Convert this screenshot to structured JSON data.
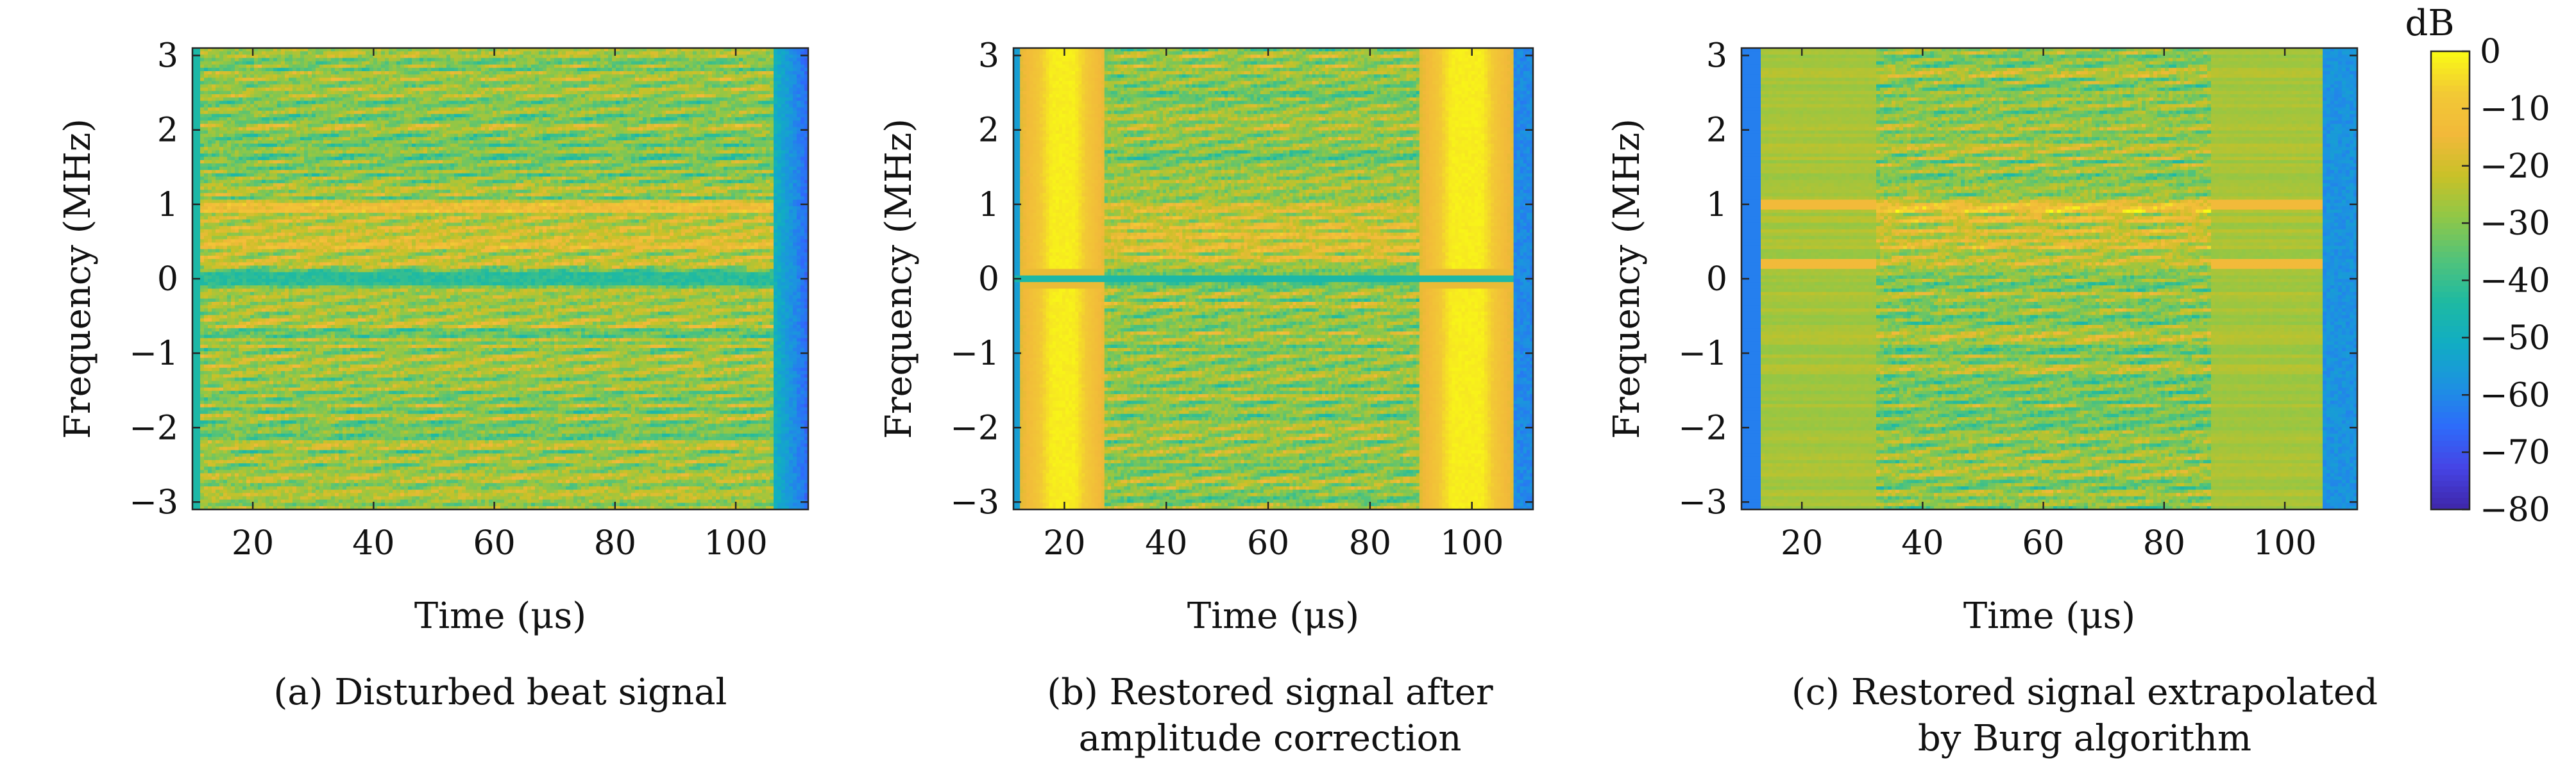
{
  "chart_data": [
    {
      "type": "heatmap",
      "panel": "a",
      "caption": "(a) Disturbed beat signal",
      "xlabel": "Time (μs)",
      "ylabel": "Frequency (MHz)",
      "xlim": [
        10,
        112
      ],
      "ylim": [
        -3.1,
        3.1
      ],
      "xticks": [
        20,
        40,
        60,
        80,
        100
      ],
      "yticks": [
        -3,
        -2,
        -1,
        0,
        1,
        2,
        3
      ],
      "content": "disturbed",
      "notes": "noise-like spectrogram; strong horizontal line near 0 MHz; band 0.2–1 MHz brighter; low values (< -60 dB) at t > 106 μs"
    },
    {
      "type": "heatmap",
      "panel": "b",
      "caption": "(b) Restored signal after amplitude correction",
      "xlabel": "Time (μs)",
      "ylabel": "Frequency (MHz)",
      "xlim": [
        10,
        112
      ],
      "ylim": [
        -3.1,
        3.1
      ],
      "xticks": [
        20,
        40,
        60,
        80,
        100
      ],
      "yticks": [
        -3,
        -2,
        -1,
        0,
        1,
        2,
        3
      ],
      "content": "amplitude_corrected",
      "bright_bands_us": [
        [
          11,
          28
        ],
        [
          90,
          108
        ]
      ],
      "notes": "near 0 dB (yellow) vertical bands in the windowed regions; dark line near 0 MHz"
    },
    {
      "type": "heatmap",
      "panel": "c",
      "caption": "(c) Restored signal extrapolated by Burg algorithm",
      "xlabel": "Time (μs)",
      "ylabel": "Frequency (MHz)",
      "xlim": [
        10,
        112
      ],
      "ylim": [
        -3.1,
        3.1
      ],
      "xticks": [
        20,
        40,
        60,
        80,
        100
      ],
      "yticks": [
        -3,
        -2,
        -1,
        0,
        1,
        2,
        3
      ],
      "content": "burg_extrapolated",
      "smooth_bands_us": [
        [
          12,
          32
        ],
        [
          88,
          106
        ]
      ],
      "notes": "extrapolated regions show horizontally smooth stripes around -20 to -25 dB"
    }
  ],
  "colorbar": {
    "label": "dB",
    "range": [
      -80,
      0
    ],
    "ticks": [
      "0",
      "−10",
      "−20",
      "−30",
      "−40",
      "−50",
      "−60",
      "−70",
      "−80"
    ],
    "colormap": [
      "#3e26a8",
      "#4644e5",
      "#2d6cfa",
      "#1c93e0",
      "#11adc3",
      "#1fbaa1",
      "#52c37a",
      "#8ec748",
      "#c8c128",
      "#f2b93a",
      "#f2c935",
      "#f9fb14"
    ]
  },
  "captions": {
    "a": [
      "(a) Disturbed beat signal"
    ],
    "b": [
      "(b) Restored signal after",
      "amplitude correction"
    ],
    "c": [
      "(c) Restored signal extrapolated",
      "by Burg algorithm"
    ]
  },
  "axis_text": {
    "xlabel": "Time (μs)",
    "ylabel": "Frequency (MHz)",
    "xtick_labels": [
      "20",
      "40",
      "60",
      "80",
      "100"
    ],
    "ytick_labels": [
      "3",
      "2",
      "1",
      "0",
      "−1",
      "−2",
      "−3"
    ]
  }
}
